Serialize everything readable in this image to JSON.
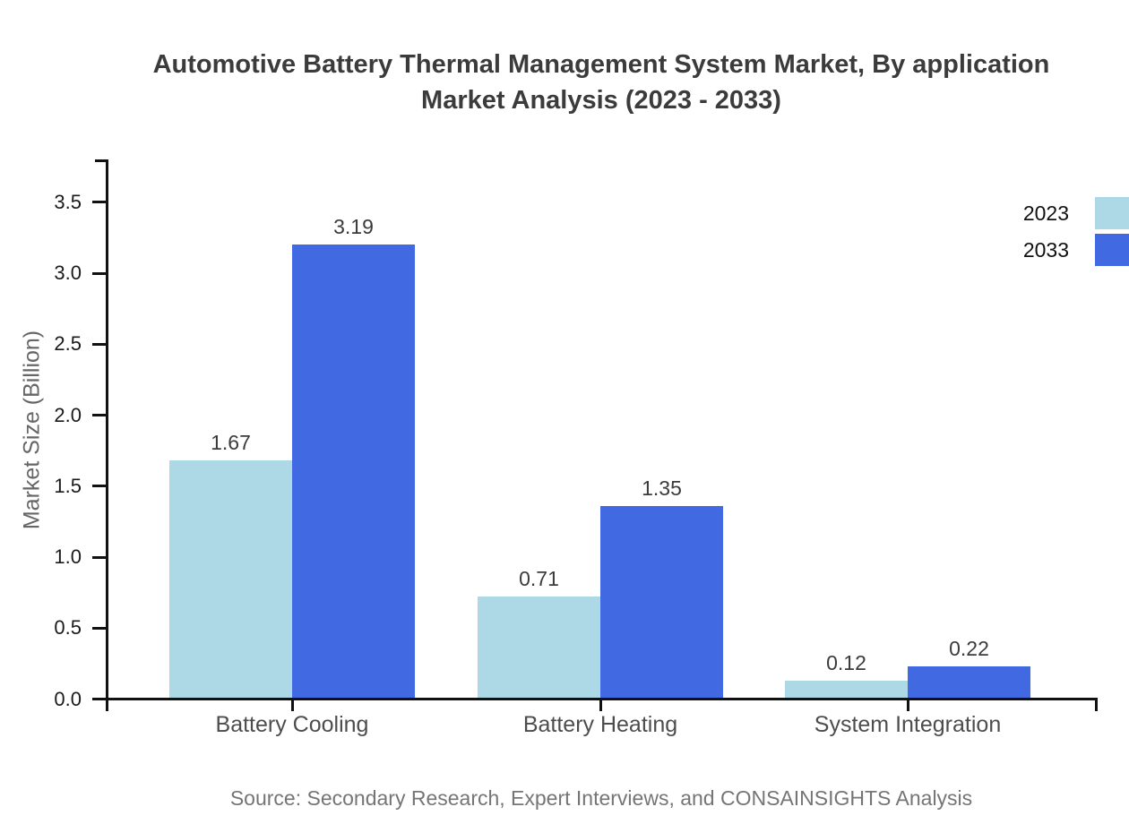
{
  "title": {
    "line1": "Automotive Battery Thermal Management System Market, By application",
    "line2": "Market Analysis (2023 - 2033)"
  },
  "source": "Source: Secondary Research, Expert Interviews, and CONSAINSIGHTS Analysis",
  "chart_data": {
    "type": "bar",
    "categories": [
      "Battery Cooling",
      "Battery Heating",
      "System Integration"
    ],
    "series": [
      {
        "name": "2023",
        "color": "#ADD8E6",
        "values": [
          1.67,
          0.71,
          0.12
        ]
      },
      {
        "name": "2033",
        "color": "#4169E1",
        "values": [
          3.19,
          1.35,
          0.22
        ]
      }
    ],
    "value_labels": [
      [
        "1.67",
        "0.71",
        "0.12"
      ],
      [
        "3.19",
        "1.35",
        "0.22"
      ]
    ],
    "title": "Automotive Battery Thermal Management System Market, By application Market Analysis (2023 - 2033)",
    "xlabel": "",
    "ylabel": "Market Size (Billion)",
    "ylim": [
      0,
      3.8
    ],
    "yticks": [
      "0.0",
      "0.5",
      "1.0",
      "1.5",
      "2.0",
      "2.5",
      "3.0",
      "3.5"
    ],
    "grid": false,
    "legend_position": "top-right",
    "axis_color": "#111111"
  }
}
